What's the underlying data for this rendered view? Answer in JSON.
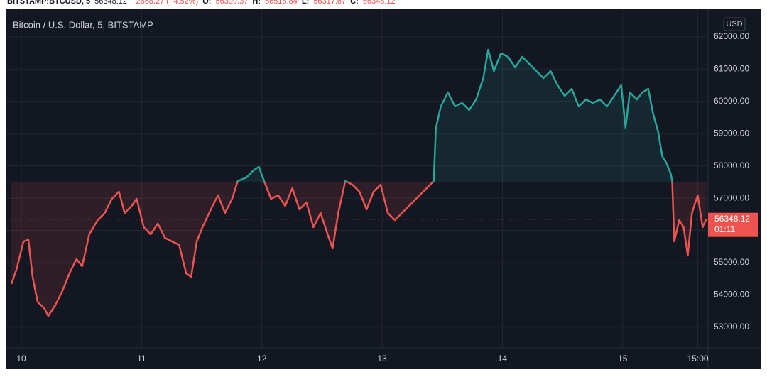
{
  "header": {
    "symbol": "BITSTAMP:BTCUSD, 5",
    "last": 56348.12,
    "change": "−2668.27 (−4.52%)",
    "ohlc": [
      {
        "label": "O:",
        "value": 56399.37
      },
      {
        "label": "H:",
        "value": 56515.84
      },
      {
        "label": "L:",
        "value": 56317.67
      },
      {
        "label": "C:",
        "value": 56348.12
      }
    ]
  },
  "chart_data": {
    "type": "line",
    "title": "Bitcoin / U.S. Dollar, 5, BITSTAMP",
    "currency": "USD",
    "baseline": 57500,
    "up_color": "#26a69a",
    "down_color": "#ef5350",
    "last_price": 56348.12,
    "countdown": "01:11",
    "x": [
      9.918,
      9.959,
      10.018,
      10.059,
      10.094,
      10.135,
      10.194,
      10.224,
      10.282,
      10.341,
      10.4,
      10.459,
      10.506,
      10.565,
      10.635,
      10.694,
      10.753,
      10.812,
      10.859,
      10.918,
      10.959,
      11.018,
      11.076,
      11.135,
      11.194,
      11.253,
      11.312,
      11.371,
      11.412,
      11.459,
      11.506,
      11.576,
      11.635,
      11.694,
      11.753,
      11.8,
      11.871,
      11.929,
      11.976,
      12.018,
      12.076,
      12.135,
      12.194,
      12.253,
      12.312,
      12.371,
      12.429,
      12.488,
      12.547,
      12.588,
      12.635,
      12.694,
      12.753,
      12.812,
      12.871,
      12.929,
      12.988,
      13.047,
      13.106,
      13.165,
      13.224,
      13.282,
      13.341,
      13.4,
      13.429,
      13.447,
      13.488,
      13.547,
      13.606,
      13.665,
      13.724,
      13.782,
      13.841,
      13.882,
      13.929,
      13.988,
      14.047,
      14.106,
      14.165,
      14.224,
      14.282,
      14.341,
      14.4,
      14.459,
      14.518,
      14.576,
      14.635,
      14.694,
      14.753,
      14.812,
      14.871,
      14.929,
      14.988,
      15.024,
      15.059,
      15.118,
      15.165,
      15.212,
      15.253,
      15.294,
      15.329,
      15.365,
      15.4,
      15.412,
      15.429,
      15.471,
      15.506,
      15.541,
      15.576,
      15.624,
      15.665,
      15.694
    ],
    "series": [
      {
        "name": "BTCUSD",
        "values": [
          54340,
          54780,
          55660,
          55710,
          54560,
          53790,
          53570,
          53350,
          53680,
          54120,
          54670,
          55110,
          54890,
          55880,
          56320,
          56540,
          56980,
          57200,
          56540,
          56760,
          56980,
          56100,
          55880,
          56210,
          55770,
          55660,
          55550,
          54670,
          54560,
          55660,
          56100,
          56650,
          57090,
          56540,
          56980,
          57530,
          57640,
          57860,
          57970,
          57530,
          56980,
          57090,
          56760,
          57310,
          56650,
          56870,
          56100,
          56540,
          55880,
          55440,
          56540,
          57530,
          57420,
          57200,
          56650,
          57200,
          57420,
          56540,
          56320,
          56540,
          56760,
          56980,
          57200,
          57420,
          57530,
          59180,
          59840,
          60280,
          59840,
          59950,
          59730,
          60060,
          60720,
          61600,
          60940,
          61490,
          61380,
          61050,
          61380,
          61160,
          60940,
          60720,
          60940,
          60500,
          60170,
          60390,
          59840,
          60060,
          59950,
          60060,
          59840,
          60170,
          60500,
          59180,
          60280,
          60060,
          60280,
          60390,
          59620,
          59070,
          58300,
          58080,
          57750,
          57530,
          55660,
          56320,
          56100,
          55220,
          56540,
          57090,
          56100,
          56348.12
        ]
      }
    ],
    "xlim": [
      9.87,
      15.71
    ],
    "ylim": [
      52360,
      62920
    ],
    "xticks": [
      10,
      11,
      12,
      13,
      14,
      15,
      {
        "value": 15.625,
        "label": "15:00"
      }
    ],
    "yticks": [
      {
        "value": 53000,
        "label": "53000.00"
      },
      {
        "value": 54000,
        "label": "54000.00"
      },
      {
        "value": 55000,
        "label": "55000.00"
      },
      {
        "value": 56000,
        "label": "56000.00"
      },
      {
        "value": 57000,
        "label": "57000.00"
      },
      {
        "value": 58000,
        "label": "58000.00"
      },
      {
        "value": 59000,
        "label": "59000.00"
      },
      {
        "value": 60000,
        "label": "60000.00"
      },
      {
        "value": 61000,
        "label": "61000.00"
      },
      {
        "value": 62000,
        "label": "62000.00"
      }
    ],
    "grid": true
  }
}
